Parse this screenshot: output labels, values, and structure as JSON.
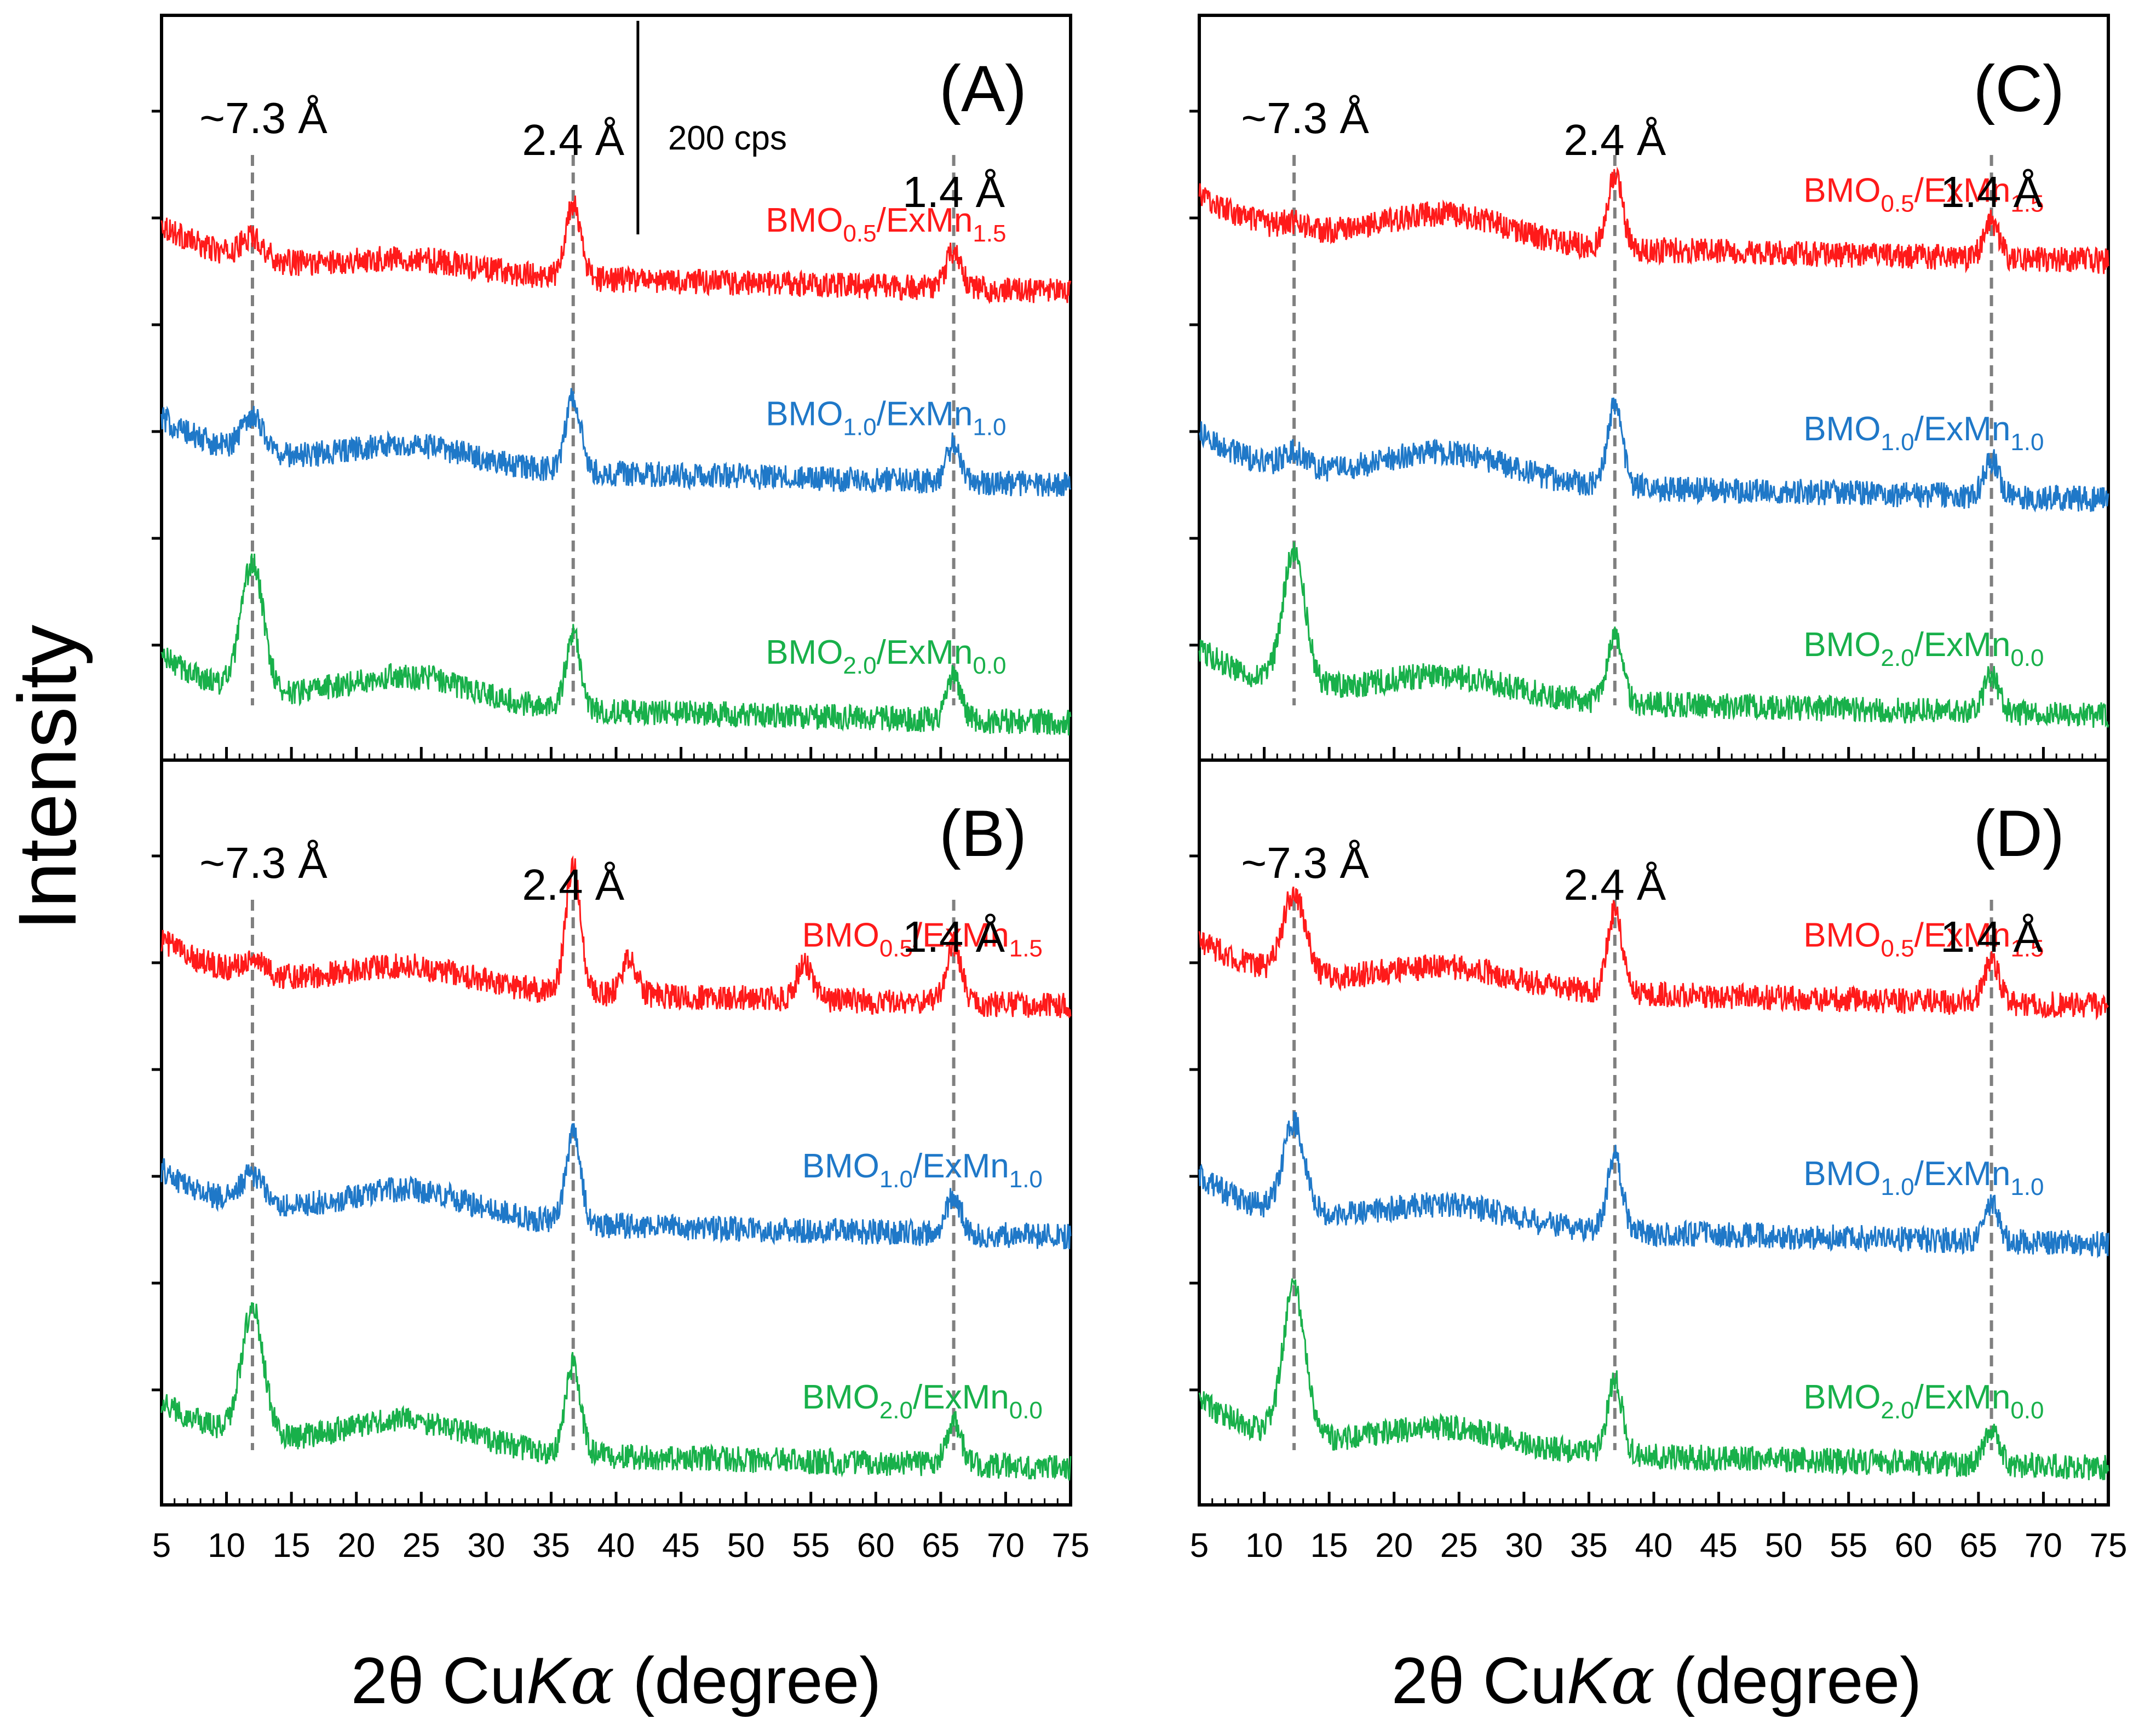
{
  "figure": {
    "ylabel": "Intensity",
    "xlabel_prefix": "2θ Cu",
    "xlabel_k": "K",
    "xlabel_alpha": "α",
    "xlabel_suffix": " (degree)"
  },
  "colors": {
    "red": "#ff1a1a",
    "blue": "#1f78c8",
    "green": "#18b04a",
    "guide": "#808080",
    "axis": "#000000"
  },
  "chart_data": [
    {
      "type": "line",
      "panel_label": "(A)",
      "x_ticks": [
        "5",
        "10",
        "15",
        "20",
        "25",
        "30",
        "35",
        "40",
        "45",
        "50",
        "55",
        "60",
        "65",
        "70",
        "75"
      ],
      "xlim": [
        5,
        75
      ],
      "scale_bar_label": "200 cps",
      "peak_annotations": [
        {
          "label": "~7.3 Å",
          "two_theta": 12.0
        },
        {
          "label": "2.4 Å",
          "two_theta": 36.7
        },
        {
          "label": "1.4 Å",
          "two_theta": 66.0
        }
      ],
      "series": [
        {
          "name": "BMO0.5/ExMn1.5",
          "sample": {
            "a": "BMO",
            "a_sub": "0.5",
            "b": "/ExMn",
            "b_sub": "1.5"
          },
          "color": "#ff1a1a",
          "baseline": 0.66,
          "peaks": [
            [
              12.0,
              0.03
            ],
            [
              36.7,
              0.1
            ],
            [
              66.0,
              0.05
            ]
          ],
          "hump": 0.02
        },
        {
          "name": "BMO1.0/ExMn1.0",
          "sample": {
            "a": "BMO",
            "a_sub": "1.0",
            "b": "/ExMn",
            "b_sub": "1.0"
          },
          "color": "#1f78c8",
          "baseline": 0.4,
          "peaks": [
            [
              12.0,
              0.05
            ],
            [
              36.7,
              0.1
            ],
            [
              66.0,
              0.05
            ]
          ],
          "hump": 0.03
        },
        {
          "name": "BMO2.0/ExMn0.0",
          "sample": {
            "a": "BMO",
            "a_sub": "2.0",
            "b": "/ExMn",
            "b_sub": "0.0"
          },
          "color": "#18b04a",
          "baseline": 0.08,
          "peaks": [
            [
              12.0,
              0.17
            ],
            [
              36.7,
              0.1
            ],
            [
              66.0,
              0.06
            ]
          ],
          "hump": 0.04
        }
      ]
    },
    {
      "type": "line",
      "panel_label": "(B)",
      "x_ticks": [
        "5",
        "10",
        "15",
        "20",
        "25",
        "30",
        "35",
        "40",
        "45",
        "50",
        "55",
        "60",
        "65",
        "70",
        "75"
      ],
      "xlim": [
        5,
        75
      ],
      "peak_annotations": [
        {
          "label": "~7.3 Å",
          "two_theta": 12.0
        },
        {
          "label": "2.4 Å",
          "two_theta": 36.7
        },
        {
          "label": "1.4 Å",
          "two_theta": 66.0
        }
      ],
      "series": [
        {
          "name": "BMO0.5/ExMn1.5",
          "sample": {
            "a": "BMO",
            "a_sub": "0.5",
            "b": "/ExMn",
            "b_sub": "1.5"
          },
          "color": "#ff1a1a",
          "baseline": 0.7,
          "peaks": [
            [
              12.0,
              0.02
            ],
            [
              36.7,
              0.17
            ],
            [
              41.0,
              0.05
            ],
            [
              54.5,
              0.05
            ],
            [
              66.0,
              0.08
            ]
          ],
          "hump": 0.03
        },
        {
          "name": "BMO1.0/ExMn1.0",
          "sample": {
            "a": "BMO",
            "a_sub": "1.0",
            "b": "/ExMn",
            "b_sub": "1.0"
          },
          "color": "#1f78c8",
          "baseline": 0.39,
          "peaks": [
            [
              12.0,
              0.04
            ],
            [
              36.7,
              0.12
            ],
            [
              66.0,
              0.05
            ]
          ],
          "hump": 0.04
        },
        {
          "name": "BMO2.0/ExMn0.0",
          "sample": {
            "a": "BMO",
            "a_sub": "2.0",
            "b": "/ExMn",
            "b_sub": "0.0"
          },
          "color": "#18b04a",
          "baseline": 0.08,
          "peaks": [
            [
              12.0,
              0.17
            ],
            [
              36.7,
              0.12
            ],
            [
              66.0,
              0.06
            ]
          ],
          "hump": 0.04
        }
      ]
    },
    {
      "type": "line",
      "panel_label": "(C)",
      "x_ticks": [
        "5",
        "10",
        "15",
        "20",
        "25",
        "30",
        "35",
        "40",
        "45",
        "50",
        "55",
        "60",
        "65",
        "70",
        "75"
      ],
      "xlim": [
        5,
        75
      ],
      "peak_annotations": [
        {
          "label": "~7.3 Å",
          "two_theta": 12.3
        },
        {
          "label": "2.4 Å",
          "two_theta": 37.0
        },
        {
          "label": "1.4 Å",
          "two_theta": 66.0
        }
      ],
      "series": [
        {
          "name": "BMO0.5/ExMn1.5",
          "sample": {
            "a": "BMO",
            "a_sub": "0.5",
            "b": "/ExMn",
            "b_sub": "1.5"
          },
          "color": "#ff1a1a",
          "baseline": 0.7,
          "peaks": [
            [
              12.3,
              0.01
            ],
            [
              37.0,
              0.1
            ],
            [
              66.0,
              0.05
            ]
          ],
          "hump": 0.04
        },
        {
          "name": "BMO1.0/ExMn1.0",
          "sample": {
            "a": "BMO",
            "a_sub": "1.0",
            "b": "/ExMn",
            "b_sub": "1.0"
          },
          "color": "#1f78c8",
          "baseline": 0.38,
          "peaks": [
            [
              12.3,
              0.02
            ],
            [
              37.0,
              0.11
            ],
            [
              66.0,
              0.05
            ]
          ],
          "hump": 0.04
        },
        {
          "name": "BMO2.0/ExMn0.0",
          "sample": {
            "a": "BMO",
            "a_sub": "2.0",
            "b": "/ExMn",
            "b_sub": "0.0"
          },
          "color": "#18b04a",
          "baseline": 0.09,
          "peaks": [
            [
              12.3,
              0.18
            ],
            [
              37.0,
              0.09
            ],
            [
              66.0,
              0.05
            ]
          ],
          "hump": 0.03
        }
      ]
    },
    {
      "type": "line",
      "panel_label": "(D)",
      "x_ticks": [
        "5",
        "10",
        "15",
        "20",
        "25",
        "30",
        "35",
        "40",
        "45",
        "50",
        "55",
        "60",
        "65",
        "70",
        "75"
      ],
      "xlim": [
        5,
        75
      ],
      "peak_annotations": [
        {
          "label": "~7.3 Å",
          "two_theta": 12.3
        },
        {
          "label": "2.4 Å",
          "two_theta": 37.0
        },
        {
          "label": "1.4 Å",
          "two_theta": 66.0
        }
      ],
      "series": [
        {
          "name": "BMO0.5/ExMn1.5",
          "sample": {
            "a": "BMO",
            "a_sub": "0.5",
            "b": "/ExMn",
            "b_sub": "1.5"
          },
          "color": "#ff1a1a",
          "baseline": 0.7,
          "peaks": [
            [
              12.3,
              0.11
            ],
            [
              37.0,
              0.11
            ],
            [
              66.0,
              0.06
            ]
          ],
          "hump": 0.03
        },
        {
          "name": "BMO1.0/ExMn1.0",
          "sample": {
            "a": "BMO",
            "a_sub": "1.0",
            "b": "/ExMn",
            "b_sub": "1.0"
          },
          "color": "#1f78c8",
          "baseline": 0.38,
          "peaks": [
            [
              12.3,
              0.12
            ],
            [
              37.0,
              0.1
            ],
            [
              66.0,
              0.05
            ]
          ],
          "hump": 0.03
        },
        {
          "name": "BMO2.0/ExMn0.0",
          "sample": {
            "a": "BMO",
            "a_sub": "2.0",
            "b": "/ExMn",
            "b_sub": "0.0"
          },
          "color": "#18b04a",
          "baseline": 0.08,
          "peaks": [
            [
              12.3,
              0.2
            ],
            [
              37.0,
              0.1
            ],
            [
              66.0,
              0.05
            ]
          ],
          "hump": 0.03
        }
      ]
    }
  ]
}
